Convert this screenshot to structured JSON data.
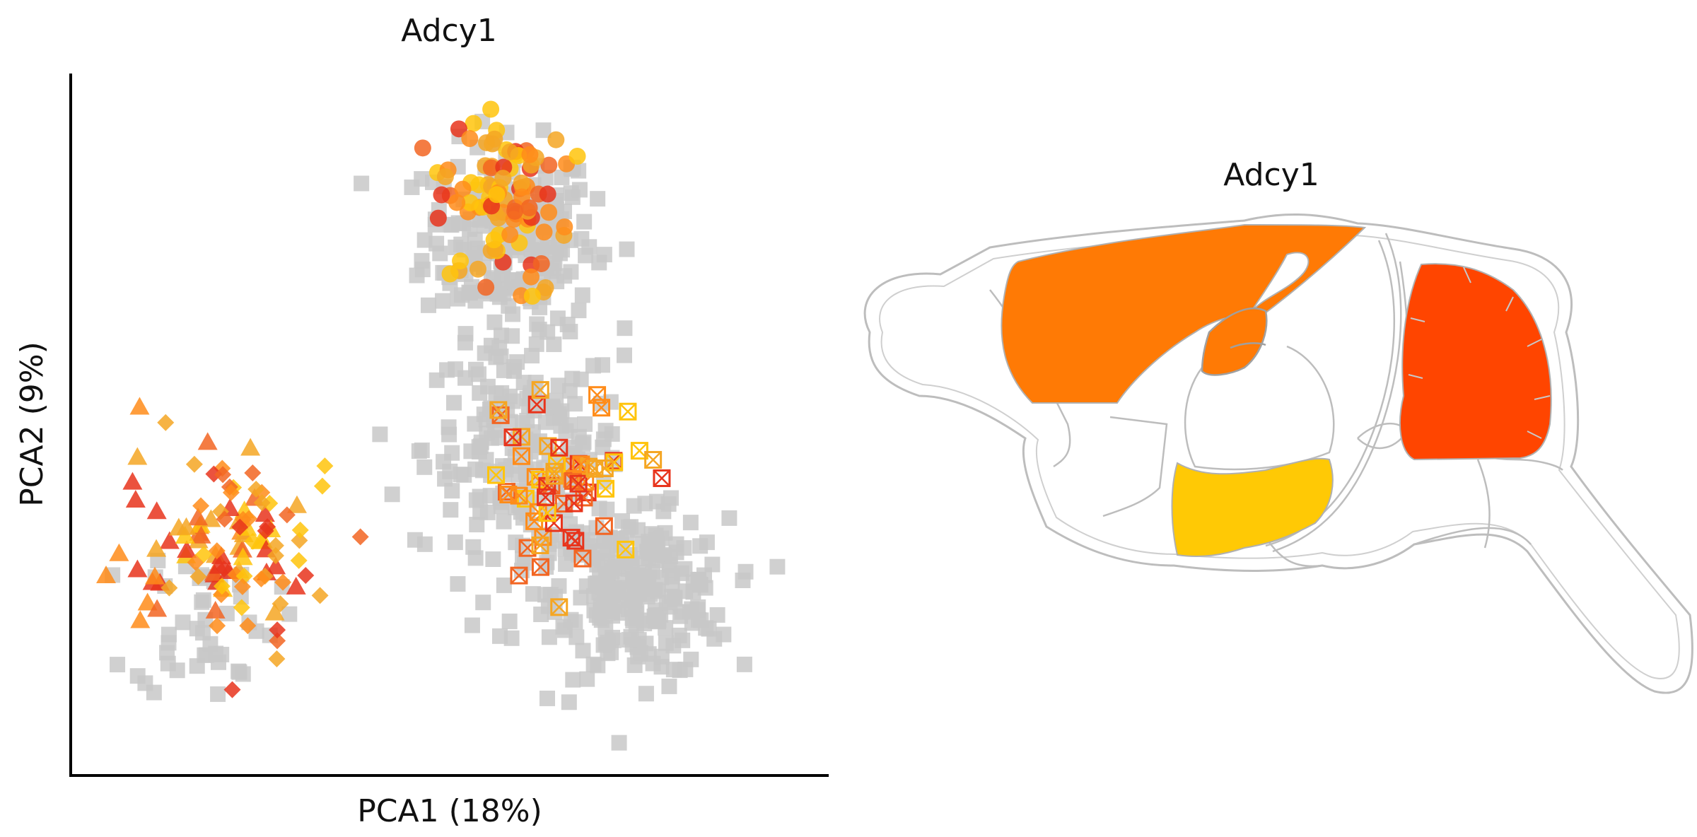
{
  "chart_data": [
    {
      "type": "scatter",
      "title": "Adcy1",
      "xlabel": "PCA1 (18%)",
      "ylabel": "PCA2 (9%)",
      "xlim": [
        0,
        100
      ],
      "ylim": [
        0,
        100
      ],
      "ticks": false,
      "grid": false,
      "legend": "none",
      "marker_colors": [
        "#f5a623",
        "#ff8c1a",
        "#f26522",
        "#e8341c",
        "#ffc40c"
      ],
      "series": [
        {
          "marker": "square",
          "color": "#c8c8c8",
          "clusters": [
            {
              "cx": 58,
              "cy": 78,
              "sx": 6,
              "sy": 7,
              "n": 230
            },
            {
              "cx": 60,
              "cy": 46,
              "sx": 7,
              "sy": 8,
              "n": 190
            },
            {
              "cx": 77,
              "cy": 23,
              "sx": 6,
              "sy": 6,
              "n": 200
            },
            {
              "cx": 68,
              "cy": 30,
              "sx": 8,
              "sy": 8,
              "n": 80
            },
            {
              "cx": 15,
              "cy": 20,
              "sx": 5,
              "sy": 6,
              "n": 45
            }
          ]
        },
        {
          "marker": "circle",
          "clusters": [
            {
              "cx": 57,
              "cy": 83,
              "sx": 5,
              "sy": 7,
              "n": 95
            }
          ]
        },
        {
          "marker": "boxed-x",
          "clusters": [
            {
              "cx": 66,
              "cy": 41,
              "sx": 6,
              "sy": 6,
              "n": 60
            }
          ]
        },
        {
          "marker": "triangle",
          "clusters": [
            {
              "cx": 15,
              "cy": 31,
              "sx": 6,
              "sy": 6,
              "n": 60
            }
          ]
        },
        {
          "marker": "diamond",
          "clusters": [
            {
              "cx": 22,
              "cy": 30,
              "sx": 6,
              "sy": 8,
              "n": 55
            }
          ]
        }
      ]
    },
    {
      "type": "anatomy-map",
      "title": "Adcy1",
      "regions": [
        {
          "name": "cortex",
          "color": "#ff7a05"
        },
        {
          "name": "hippocampus",
          "color": "#ff7a05"
        },
        {
          "name": "cerebellum",
          "color": "#ff4500"
        },
        {
          "name": "hypothalamus",
          "color": "#ffc905"
        },
        {
          "name": "olfactory-bulb",
          "color": "#ffffff"
        },
        {
          "name": "striatum",
          "color": "#ffffff"
        },
        {
          "name": "thalamus",
          "color": "#ffffff"
        },
        {
          "name": "midbrain",
          "color": "#ffffff"
        },
        {
          "name": "pons",
          "color": "#ffffff"
        },
        {
          "name": "medulla",
          "color": "#ffffff"
        },
        {
          "name": "spinal-cord",
          "color": "#ffffff"
        }
      ]
    }
  ]
}
